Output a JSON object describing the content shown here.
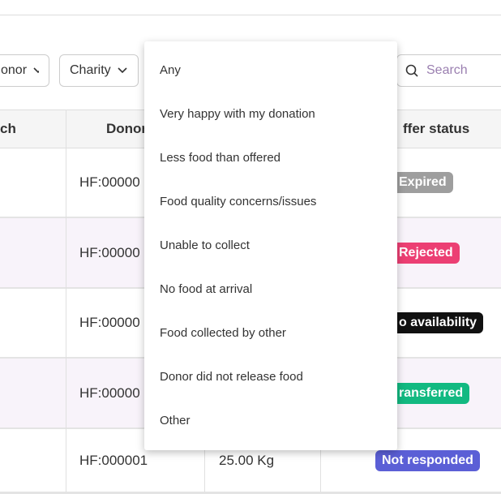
{
  "filters": [
    "onor",
    "Charity"
  ],
  "search_placeholder": "Search",
  "table": {
    "headers": [
      "ch",
      "Donor",
      "ffer status"
    ],
    "rows": [
      {
        "id": "HF:00000",
        "status": "Expired"
      },
      {
        "id": "HF:00000",
        "status": "Rejected"
      },
      {
        "id": "HF:00000",
        "status": "o availability"
      },
      {
        "id": "HF:00000",
        "status": "ransferred"
      },
      {
        "id": "HF:000001",
        "weight": "25.00 Kg",
        "status": "Not responded"
      }
    ]
  },
  "dropdown": {
    "options": [
      "Any",
      "Very happy with my donation",
      "Less food than offered",
      "Food quality concerns/issues",
      "Unable to collect",
      "No food at arrival",
      "Food collected by other",
      "Donor did not release food",
      "Other"
    ]
  }
}
